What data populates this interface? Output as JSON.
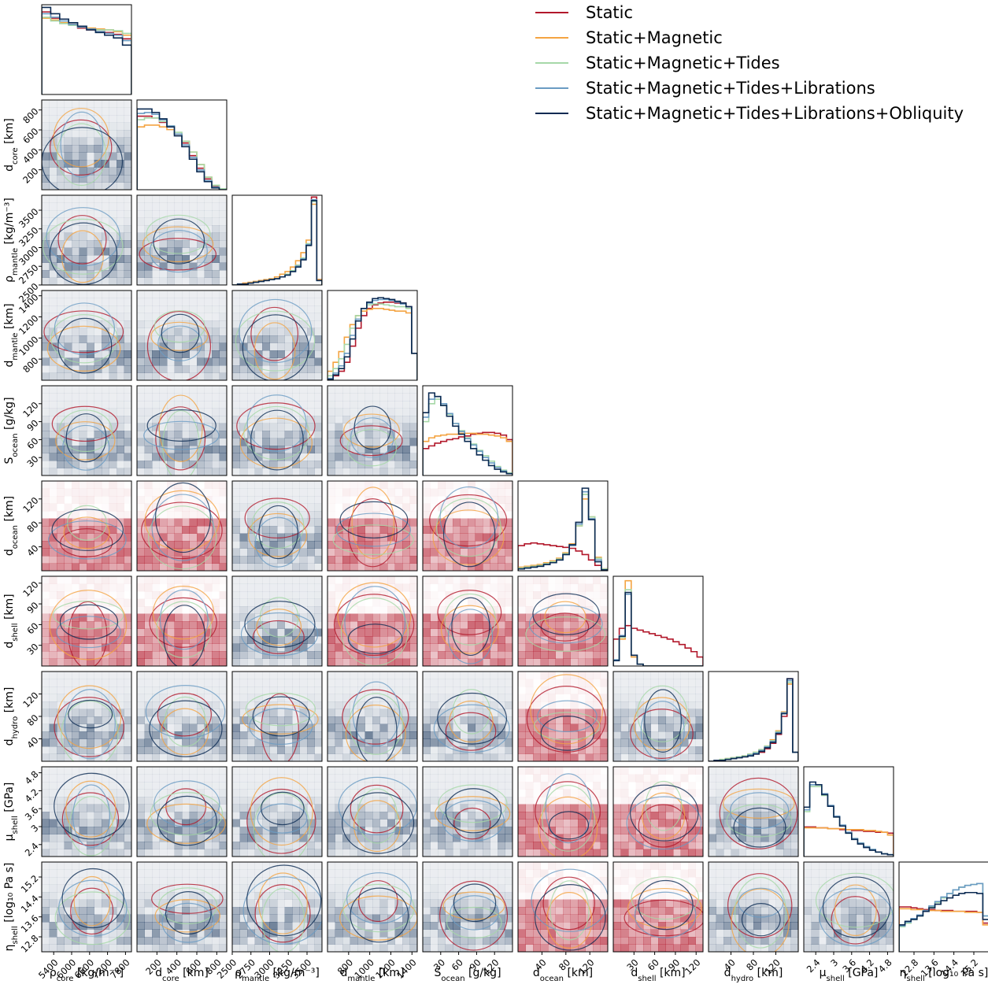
{
  "chart_data": {
    "type": "corner",
    "series": [
      {
        "name": "Static",
        "color": "#b2182b"
      },
      {
        "name": "Static+Magnetic",
        "color": "#f4a442"
      },
      {
        "name": "Static+Magnetic+Tides",
        "color": "#a6d8a8"
      },
      {
        "name": "Static+Magnetic+Tides+Librations",
        "color": "#6a9bc3"
      },
      {
        "name": "Static+Magnetic+Tides+Librations+Obliquity",
        "color": "#0b2a52"
      }
    ],
    "parameters": [
      {
        "key": "rho_core",
        "label": "ρ",
        "sub": "core",
        "unit": " [kg/m⁻³]",
        "range": [
          5000,
          8000
        ],
        "ticks": [
          5400,
          6000,
          6600,
          7200,
          7800
        ]
      },
      {
        "key": "d_core",
        "label": "d",
        "sub": "core",
        "unit": " [km]",
        "range": [
          0,
          900
        ],
        "ticks": [
          200,
          400,
          600,
          800
        ]
      },
      {
        "key": "rho_mantle",
        "label": "ρ",
        "sub": "mantle",
        "unit": " [kg/m⁻³]",
        "range": [
          2500,
          3700
        ],
        "ticks": [
          2500,
          2750,
          3000,
          3250,
          3500
        ]
      },
      {
        "key": "d_mantle",
        "label": "d",
        "sub": "mantle",
        "unit": " [km]",
        "range": [
          600,
          1450
        ],
        "ticks": [
          800,
          1000,
          1200,
          1400
        ]
      },
      {
        "key": "S_ocean",
        "label": "S",
        "sub": "ocean",
        "unit": " [g/kg]",
        "range": [
          0,
          150
        ],
        "ticks": [
          30,
          60,
          90,
          120
        ]
      },
      {
        "key": "d_ocean",
        "label": "d",
        "sub": "ocean",
        "unit": " [km]",
        "range": [
          0,
          150
        ],
        "ticks": [
          40,
          80,
          120
        ]
      },
      {
        "key": "d_shell",
        "label": "d",
        "sub": "shell",
        "unit": " [km]",
        "range": [
          0,
          130
        ],
        "ticks": [
          30,
          60,
          90,
          120
        ]
      },
      {
        "key": "d_hydro",
        "label": "d",
        "sub": "hydro",
        "unit": " [km]",
        "range": [
          0,
          160
        ],
        "ticks": [
          40,
          80,
          120
        ]
      },
      {
        "key": "mu_shell",
        "label": "μ",
        "sub": "shell",
        "unit": " [GPa]",
        "range": [
          2.0,
          5.0
        ],
        "ticks": [
          2.4,
          3.0,
          3.6,
          4.2,
          4.8
        ]
      },
      {
        "key": "eta_shell",
        "label": "η",
        "sub": "shell",
        "unit": " [log₁₀ Pa s]",
        "range": [
          12.2,
          15.8
        ],
        "ticks": [
          12.8,
          13.6,
          14.4,
          15.2
        ]
      }
    ],
    "marginals": [
      {
        "series": [
          [
            0.92,
            0.85,
            0.8,
            0.78,
            0.74,
            0.72,
            0.7,
            0.69,
            0.67,
            0.62
          ],
          [
            0.85,
            0.83,
            0.8,
            0.78,
            0.76,
            0.74,
            0.73,
            0.72,
            0.7,
            0.66
          ],
          [
            0.86,
            0.82,
            0.79,
            0.77,
            0.75,
            0.73,
            0.72,
            0.72,
            0.71,
            0.68
          ],
          [
            0.9,
            0.86,
            0.82,
            0.78,
            0.75,
            0.73,
            0.7,
            0.68,
            0.66,
            0.6
          ],
          [
            0.97,
            0.9,
            0.84,
            0.8,
            0.76,
            0.72,
            0.69,
            0.66,
            0.63,
            0.55
          ]
        ]
      },
      {
        "series": [
          [
            0.82,
            0.82,
            0.8,
            0.75,
            0.7,
            0.62,
            0.52,
            0.38,
            0.24,
            0.12,
            0.04,
            0.01
          ],
          [
            0.7,
            0.72,
            0.72,
            0.7,
            0.67,
            0.62,
            0.54,
            0.42,
            0.28,
            0.14,
            0.05,
            0.01
          ],
          [
            0.78,
            0.8,
            0.8,
            0.76,
            0.71,
            0.64,
            0.54,
            0.42,
            0.28,
            0.14,
            0.05,
            0.01
          ],
          [
            0.85,
            0.86,
            0.84,
            0.78,
            0.71,
            0.62,
            0.5,
            0.36,
            0.22,
            0.1,
            0.03,
            0.0
          ],
          [
            0.9,
            0.9,
            0.86,
            0.79,
            0.7,
            0.6,
            0.48,
            0.34,
            0.2,
            0.09,
            0.02,
            0.0
          ]
        ]
      },
      {
        "series": [
          [
            0.0,
            0.01,
            0.02,
            0.02,
            0.03,
            0.04,
            0.05,
            0.06,
            0.07,
            0.09,
            0.12,
            0.16,
            0.22,
            0.3,
            0.45,
            0.98,
            0.06
          ],
          [
            0.0,
            0.01,
            0.02,
            0.03,
            0.04,
            0.05,
            0.06,
            0.07,
            0.09,
            0.12,
            0.15,
            0.2,
            0.27,
            0.36,
            0.5,
            0.9,
            0.06
          ],
          [
            0.0,
            0.01,
            0.01,
            0.02,
            0.03,
            0.04,
            0.05,
            0.06,
            0.07,
            0.09,
            0.12,
            0.16,
            0.22,
            0.3,
            0.46,
            0.93,
            0.05
          ],
          [
            0.0,
            0.01,
            0.01,
            0.02,
            0.03,
            0.04,
            0.05,
            0.06,
            0.07,
            0.09,
            0.11,
            0.15,
            0.21,
            0.29,
            0.45,
            0.95,
            0.05
          ],
          [
            0.0,
            0.01,
            0.01,
            0.02,
            0.03,
            0.04,
            0.05,
            0.06,
            0.07,
            0.09,
            0.11,
            0.15,
            0.2,
            0.28,
            0.44,
            0.94,
            0.05
          ]
        ]
      },
      {
        "series": [
          [
            0.0,
            0.05,
            0.1,
            0.2,
            0.38,
            0.58,
            0.72,
            0.8,
            0.84,
            0.86,
            0.87,
            0.87,
            0.86,
            0.86,
            0.82,
            0.3
          ],
          [
            0.1,
            0.2,
            0.32,
            0.48,
            0.62,
            0.72,
            0.77,
            0.79,
            0.8,
            0.8,
            0.79,
            0.78,
            0.77,
            0.77,
            0.75,
            0.3
          ],
          [
            0.05,
            0.13,
            0.24,
            0.4,
            0.58,
            0.72,
            0.8,
            0.84,
            0.85,
            0.85,
            0.84,
            0.83,
            0.82,
            0.82,
            0.8,
            0.3
          ],
          [
            0.02,
            0.08,
            0.16,
            0.3,
            0.5,
            0.68,
            0.8,
            0.86,
            0.89,
            0.9,
            0.9,
            0.89,
            0.87,
            0.85,
            0.82,
            0.3
          ],
          [
            0.01,
            0.06,
            0.13,
            0.26,
            0.46,
            0.66,
            0.8,
            0.87,
            0.91,
            0.92,
            0.91,
            0.9,
            0.88,
            0.86,
            0.82,
            0.3
          ]
        ]
      },
      {
        "series": [
          [
            0.3,
            0.33,
            0.36,
            0.38,
            0.4,
            0.41,
            0.43,
            0.44,
            0.46,
            0.47,
            0.48,
            0.48,
            0.47,
            0.45,
            0.4
          ],
          [
            0.38,
            0.42,
            0.44,
            0.45,
            0.46,
            0.46,
            0.47,
            0.47,
            0.47,
            0.46,
            0.46,
            0.45,
            0.44,
            0.42,
            0.38
          ],
          [
            0.6,
            0.8,
            0.85,
            0.78,
            0.68,
            0.58,
            0.5,
            0.42,
            0.35,
            0.28,
            0.22,
            0.16,
            0.1,
            0.06,
            0.03
          ],
          [
            0.65,
            0.85,
            0.88,
            0.8,
            0.69,
            0.58,
            0.49,
            0.41,
            0.34,
            0.27,
            0.2,
            0.14,
            0.09,
            0.05,
            0.02
          ],
          [
            0.7,
            0.92,
            0.88,
            0.78,
            0.66,
            0.55,
            0.46,
            0.38,
            0.3,
            0.23,
            0.17,
            0.11,
            0.07,
            0.04,
            0.02
          ]
        ]
      },
      {
        "series": [
          [
            0.28,
            0.3,
            0.31,
            0.3,
            0.29,
            0.28,
            0.27,
            0.26,
            0.25,
            0.22,
            0.18,
            0.12,
            0.06,
            0.02
          ],
          [
            0.04,
            0.05,
            0.06,
            0.07,
            0.09,
            0.11,
            0.14,
            0.2,
            0.3,
            0.5,
            0.8,
            0.6,
            0.15,
            0.02
          ],
          [
            0.03,
            0.04,
            0.05,
            0.06,
            0.08,
            0.1,
            0.13,
            0.19,
            0.29,
            0.5,
            0.85,
            0.6,
            0.14,
            0.02
          ],
          [
            0.02,
            0.03,
            0.04,
            0.05,
            0.07,
            0.09,
            0.12,
            0.18,
            0.28,
            0.52,
            0.88,
            0.58,
            0.12,
            0.01
          ],
          [
            0.02,
            0.03,
            0.04,
            0.05,
            0.07,
            0.09,
            0.12,
            0.18,
            0.29,
            0.54,
            0.92,
            0.57,
            0.1,
            0.01
          ]
        ]
      },
      {
        "series": [
          [
            0.3,
            0.42,
            0.45,
            0.42,
            0.4,
            0.38,
            0.36,
            0.34,
            0.32,
            0.3,
            0.27,
            0.24,
            0.2,
            0.16,
            0.1
          ],
          [
            0.06,
            0.3,
            0.95,
            0.1,
            0.02,
            0.0,
            0.0,
            0.0,
            0.0,
            0.0,
            0.0,
            0.0,
            0.0,
            0.0,
            0.0
          ],
          [
            0.06,
            0.32,
            0.85,
            0.12,
            0.02,
            0.0,
            0.0,
            0.0,
            0.0,
            0.0,
            0.0,
            0.0,
            0.0,
            0.0,
            0.0
          ],
          [
            0.07,
            0.34,
            0.8,
            0.12,
            0.02,
            0.0,
            0.0,
            0.0,
            0.0,
            0.0,
            0.0,
            0.0,
            0.0,
            0.0,
            0.0
          ],
          [
            0.06,
            0.33,
            0.82,
            0.12,
            0.02,
            0.0,
            0.0,
            0.0,
            0.0,
            0.0,
            0.0,
            0.0,
            0.0,
            0.0,
            0.0
          ]
        ]
      },
      {
        "series": [
          [
            0.0,
            0.01,
            0.01,
            0.02,
            0.03,
            0.04,
            0.05,
            0.06,
            0.08,
            0.1,
            0.14,
            0.2,
            0.3,
            0.5,
            0.92,
            0.1
          ],
          [
            0.0,
            0.01,
            0.02,
            0.03,
            0.04,
            0.05,
            0.06,
            0.08,
            0.1,
            0.13,
            0.17,
            0.24,
            0.34,
            0.55,
            0.86,
            0.1
          ],
          [
            0.0,
            0.01,
            0.02,
            0.03,
            0.04,
            0.05,
            0.06,
            0.08,
            0.1,
            0.13,
            0.17,
            0.23,
            0.33,
            0.54,
            0.88,
            0.1
          ],
          [
            0.0,
            0.01,
            0.01,
            0.02,
            0.03,
            0.04,
            0.05,
            0.07,
            0.09,
            0.12,
            0.16,
            0.22,
            0.32,
            0.54,
            0.9,
            0.1
          ],
          [
            0.0,
            0.01,
            0.01,
            0.02,
            0.03,
            0.04,
            0.05,
            0.06,
            0.08,
            0.11,
            0.15,
            0.21,
            0.31,
            0.53,
            0.92,
            0.1
          ]
        ]
      },
      {
        "series": [
          [
            0.33,
            0.33,
            0.32,
            0.32,
            0.31,
            0.31,
            0.3,
            0.3,
            0.29,
            0.29,
            0.28,
            0.28,
            0.27,
            0.27,
            0.26
          ],
          [
            0.32,
            0.32,
            0.32,
            0.32,
            0.31,
            0.31,
            0.31,
            0.3,
            0.3,
            0.3,
            0.29,
            0.29,
            0.28,
            0.27,
            0.24
          ],
          [
            0.5,
            0.78,
            0.78,
            0.68,
            0.56,
            0.44,
            0.34,
            0.26,
            0.2,
            0.15,
            0.11,
            0.08,
            0.05,
            0.03,
            0.02
          ],
          [
            0.52,
            0.8,
            0.8,
            0.7,
            0.57,
            0.45,
            0.35,
            0.27,
            0.2,
            0.15,
            0.11,
            0.08,
            0.05,
            0.03,
            0.02
          ],
          [
            0.55,
            0.83,
            0.8,
            0.69,
            0.56,
            0.44,
            0.34,
            0.26,
            0.19,
            0.14,
            0.1,
            0.07,
            0.05,
            0.03,
            0.02
          ]
        ]
      },
      {
        "series": [
          [
            0.5,
            0.5,
            0.49,
            0.48,
            0.47,
            0.47,
            0.46,
            0.46,
            0.46,
            0.45,
            0.45,
            0.45,
            0.45,
            0.44,
            0.32
          ],
          [
            0.48,
            0.48,
            0.47,
            0.47,
            0.46,
            0.46,
            0.46,
            0.45,
            0.45,
            0.45,
            0.45,
            0.44,
            0.44,
            0.44,
            0.3
          ],
          [
            0.28,
            0.32,
            0.36,
            0.4,
            0.45,
            0.5,
            0.55,
            0.6,
            0.65,
            0.69,
            0.72,
            0.74,
            0.75,
            0.76,
            0.4
          ],
          [
            0.29,
            0.33,
            0.37,
            0.41,
            0.46,
            0.51,
            0.56,
            0.61,
            0.65,
            0.69,
            0.72,
            0.74,
            0.75,
            0.76,
            0.4
          ],
          [
            0.3,
            0.34,
            0.36,
            0.4,
            0.45,
            0.49,
            0.53,
            0.57,
            0.6,
            0.63,
            0.65,
            0.66,
            0.66,
            0.65,
            0.36
          ]
        ]
      }
    ]
  }
}
